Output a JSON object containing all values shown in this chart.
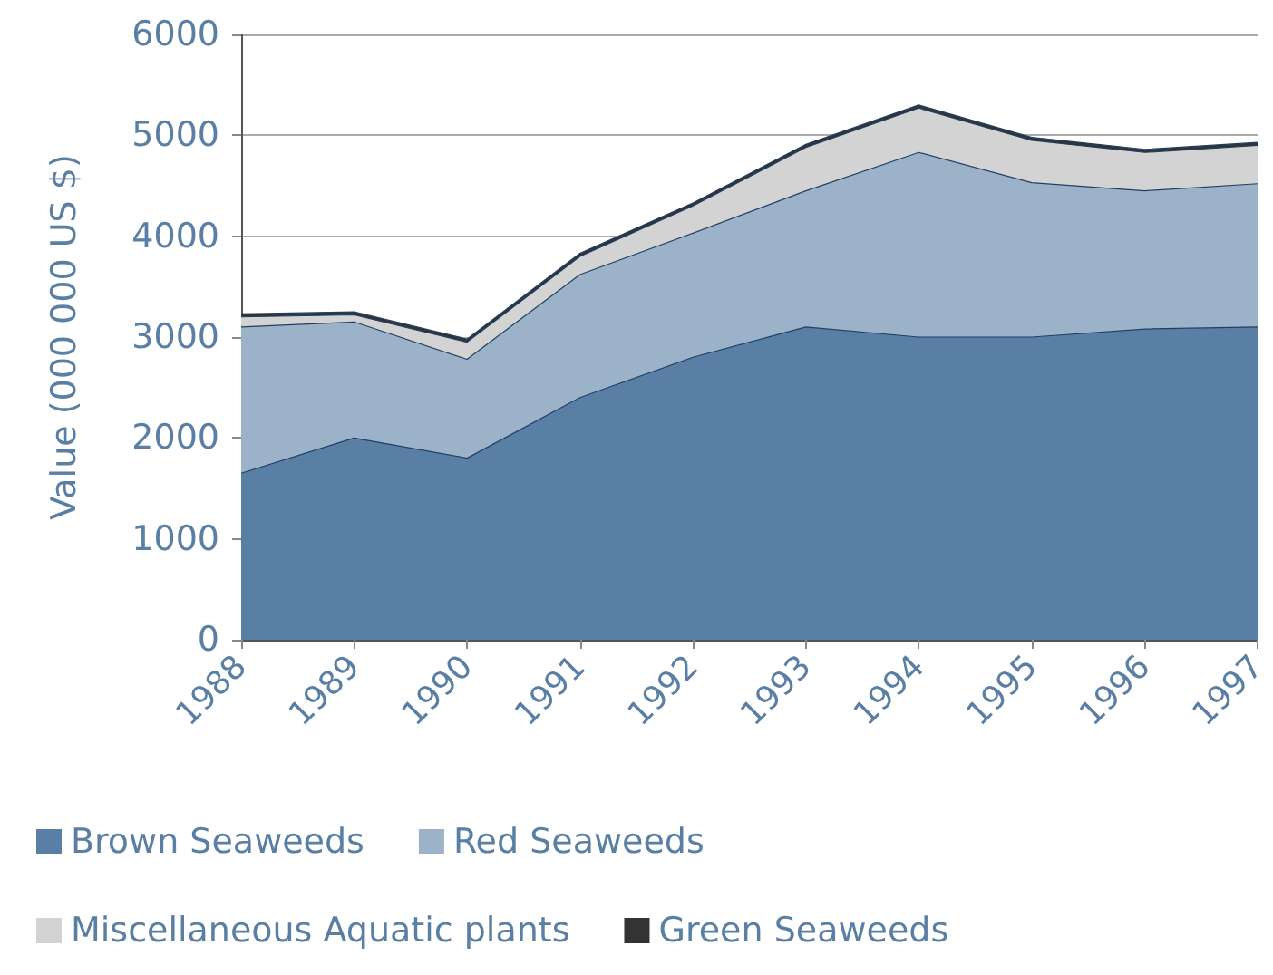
{
  "chart_data": {
    "type": "area",
    "stacked": true,
    "ylabel": "Value (000 000 US $)",
    "categories": [
      "1988",
      "1989",
      "1990",
      "1991",
      "1992",
      "1993",
      "1994",
      "1995",
      "1996",
      "1997"
    ],
    "series": [
      {
        "name": "Brown Seaweeds",
        "color": "#5a7fa5",
        "values": [
          1650,
          2000,
          1800,
          2400,
          2800,
          3100,
          3000,
          3000,
          3080,
          3100
        ]
      },
      {
        "name": "Red Seaweeds",
        "color": "#9cb2c9",
        "values": [
          1450,
          1150,
          980,
          1220,
          1230,
          1350,
          1830,
          1530,
          1370,
          1420
        ]
      },
      {
        "name": "Miscellaneous Aquatic plants",
        "color": "#d3d3d3",
        "values": [
          100,
          70,
          170,
          180,
          270,
          430,
          440,
          420,
          380,
          380
        ]
      },
      {
        "name": "Green Seaweeds",
        "color": "#333333",
        "values": [
          30,
          30,
          30,
          30,
          30,
          30,
          30,
          30,
          30,
          30
        ]
      }
    ],
    "ylim": [
      0,
      6000
    ],
    "yticks": [
      0,
      1000,
      2000,
      3000,
      4000,
      5000,
      6000
    ],
    "grid": "y",
    "legend": "bottom"
  }
}
